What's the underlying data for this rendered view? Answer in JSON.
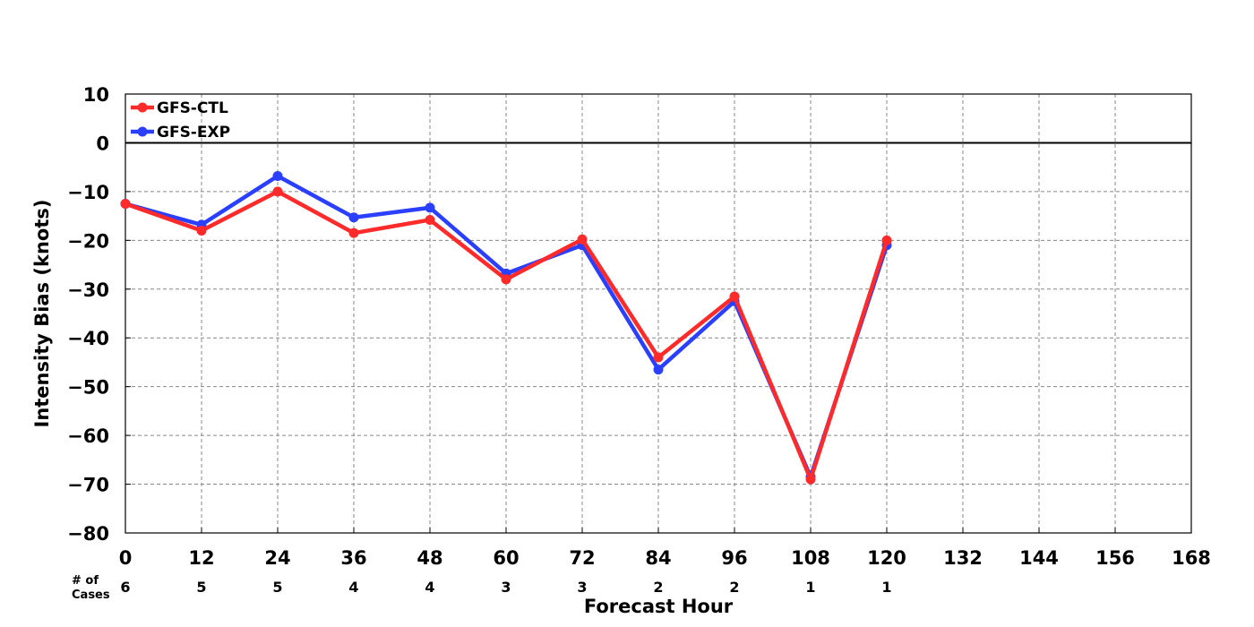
{
  "chart_data": {
    "type": "line",
    "xlabel": "Forecast Hour",
    "ylabel": "Intensity Bias (knots)",
    "xlim": [
      0,
      168
    ],
    "ylim": [
      -80,
      10
    ],
    "xticks": [
      "0",
      "12",
      "24",
      "36",
      "48",
      "60",
      "72",
      "84",
      "96",
      "108",
      "120",
      "132",
      "144",
      "156",
      "168"
    ],
    "yticks": [
      "10",
      "0",
      "−10",
      "−20",
      "−30",
      "−40",
      "−50",
      "−60",
      "−70",
      "−80"
    ],
    "grid": true,
    "legend_position": "top-left",
    "cases_label_line1": "# of",
    "cases_label_line2": "Cases",
    "cases": [
      "6",
      "5",
      "5",
      "4",
      "4",
      "3",
      "3",
      "2",
      "2",
      "1",
      "1"
    ],
    "x": [
      0,
      12,
      24,
      36,
      48,
      60,
      72,
      84,
      96,
      108,
      120
    ],
    "series": [
      {
        "name": "GFS-CTL",
        "color": "#ff2a2a",
        "values": [
          -12.5,
          -18,
          -10,
          -18.5,
          -15.8,
          -28,
          -19.8,
          -44,
          -31.5,
          -69,
          -20
        ]
      },
      {
        "name": "GFS-EXP",
        "color": "#2a3fff",
        "values": [
          -12.5,
          -16.8,
          -6.8,
          -15.3,
          -13.3,
          -26.8,
          -21,
          -46.5,
          -32.5,
          -68.5,
          -21
        ]
      }
    ]
  }
}
